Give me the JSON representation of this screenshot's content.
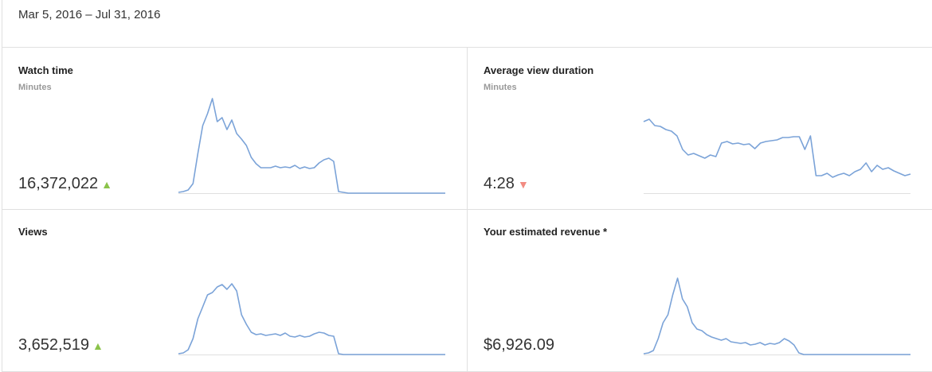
{
  "header": {
    "date_range": "Mar 5, 2016 – Jul 31, 2016"
  },
  "colors": {
    "line": "#7ba3d8",
    "baseline": "#e0e0e0",
    "up": "#8bc34a",
    "down": "#f28b82"
  },
  "cards": [
    {
      "title": "Watch time",
      "subtitle": "Minutes",
      "value": "16,372,022",
      "trend": "up",
      "trend_icon": "▲"
    },
    {
      "title": "Average view duration",
      "subtitle": "Minutes",
      "value": "4:28",
      "trend": "down",
      "trend_icon": "▼"
    },
    {
      "title": "Views",
      "subtitle": "",
      "value": "3,652,519",
      "trend": "up",
      "trend_icon": "▲"
    },
    {
      "title": "Your estimated revenue *",
      "subtitle": "",
      "value": "$6,926.09",
      "trend": "none",
      "trend_icon": ""
    }
  ],
  "chart_data": [
    {
      "type": "line",
      "title": "Watch time",
      "ylim": [
        0,
        121
      ],
      "values": [
        1,
        2,
        4,
        12,
        50,
        85,
        100,
        119,
        90,
        95,
        80,
        92,
        75,
        68,
        60,
        45,
        37,
        32,
        32,
        32,
        34,
        32,
        33,
        32,
        35,
        31,
        33,
        31,
        32,
        38,
        42,
        44,
        40,
        2,
        1,
        0,
        0,
        0,
        0,
        0,
        0,
        0,
        0,
        0,
        0,
        0,
        0,
        0,
        0,
        0,
        0,
        0,
        0,
        0,
        0,
        0
      ]
    },
    {
      "type": "line",
      "title": "Average view duration",
      "ylim": [
        0,
        121
      ],
      "values": [
        90,
        93,
        85,
        84,
        80,
        78,
        72,
        55,
        48,
        50,
        47,
        44,
        48,
        46,
        63,
        65,
        62,
        63,
        61,
        62,
        56,
        63,
        65,
        66,
        67,
        70,
        70,
        71,
        71,
        55,
        72,
        22,
        22,
        25,
        20,
        23,
        25,
        22,
        27,
        30,
        38,
        27,
        35,
        30,
        32,
        28,
        25,
        22,
        24
      ]
    },
    {
      "type": "line",
      "title": "Views",
      "ylim": [
        0,
        121
      ],
      "values": [
        1,
        2,
        6,
        20,
        45,
        60,
        75,
        78,
        85,
        88,
        82,
        89,
        80,
        50,
        38,
        28,
        25,
        26,
        24,
        25,
        26,
        24,
        27,
        23,
        22,
        24,
        22,
        23,
        26,
        28,
        27,
        24,
        23,
        1,
        0,
        0,
        0,
        0,
        0,
        0,
        0,
        0,
        0,
        0,
        0,
        0,
        0,
        0,
        0,
        0,
        0,
        0,
        0,
        0,
        0,
        0
      ]
    },
    {
      "type": "line",
      "title": "Your estimated revenue",
      "ylim": [
        0,
        121
      ],
      "values": [
        1,
        2,
        5,
        20,
        40,
        50,
        75,
        96,
        70,
        60,
        40,
        32,
        30,
        25,
        22,
        20,
        18,
        20,
        16,
        15,
        14,
        15,
        12,
        13,
        15,
        12,
        14,
        13,
        15,
        20,
        17,
        12,
        2,
        0,
        0,
        0,
        0,
        0,
        0,
        0,
        0,
        0,
        0,
        0,
        0,
        0,
        0,
        0,
        0,
        0,
        0,
        0,
        0,
        0,
        0,
        0
      ]
    }
  ]
}
